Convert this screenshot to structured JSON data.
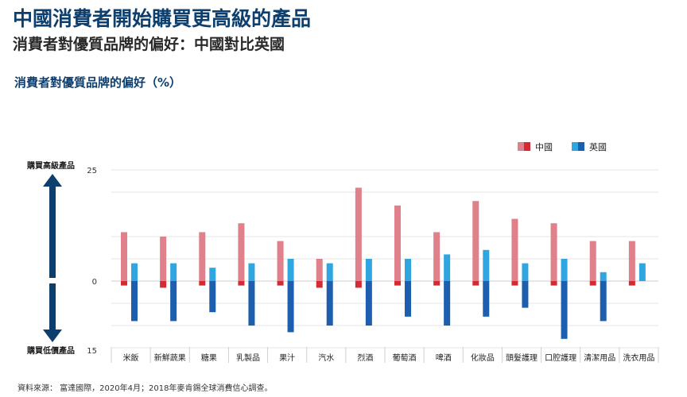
{
  "header": {
    "title": "中國消費者開始購買更高級的產品",
    "subtitle": "消費者對優質品牌的偏好：中國對比英國"
  },
  "source": "資料來源： 富達國際，2020年4月；2018年麥肯錫全球消費信心調查。",
  "colors": {
    "china_up": "#e0808a",
    "china_down": "#d42a32",
    "uk_up": "#2fa6e0",
    "uk_down": "#1d5fae",
    "arrow": "#0d3f6e",
    "grid": "#e4e4e4"
  },
  "chart_data": {
    "type": "bar",
    "title": "消費者對優質品牌的偏好（%）",
    "categories": [
      "米飯",
      "新鮮蔬果",
      "糖果",
      "乳製品",
      "果汁",
      "汽水",
      "烈酒",
      "葡萄酒",
      "啤酒",
      "化妝品",
      "頭髮護理",
      "口腔護理",
      "清潔用品",
      "洗衣用品"
    ],
    "series": [
      {
        "name": "中國",
        "up": [
          11,
          10,
          11,
          13,
          9,
          5,
          21,
          17,
          11,
          18,
          14,
          13,
          9,
          9
        ],
        "down": [
          -1,
          -1.5,
          -1,
          -1,
          -1,
          -1.5,
          -1.5,
          -1,
          -1,
          -1,
          -1,
          -1,
          -1,
          -1
        ]
      },
      {
        "name": "英國",
        "up": [
          4,
          4,
          3,
          4,
          5,
          4,
          5,
          5,
          6,
          7,
          4,
          5,
          2,
          4
        ],
        "down": [
          -9,
          -9,
          -7,
          -10,
          -11.5,
          -10,
          -10,
          -8,
          -10,
          -8,
          -6,
          -13,
          -9,
          0
        ]
      }
    ],
    "ylim": [
      -15,
      25
    ],
    "yticks": [
      25,
      0,
      15
    ],
    "upper_label": "購買高級產品",
    "lower_label": "購買低價產品",
    "legend": "top-right",
    "grid": true
  }
}
